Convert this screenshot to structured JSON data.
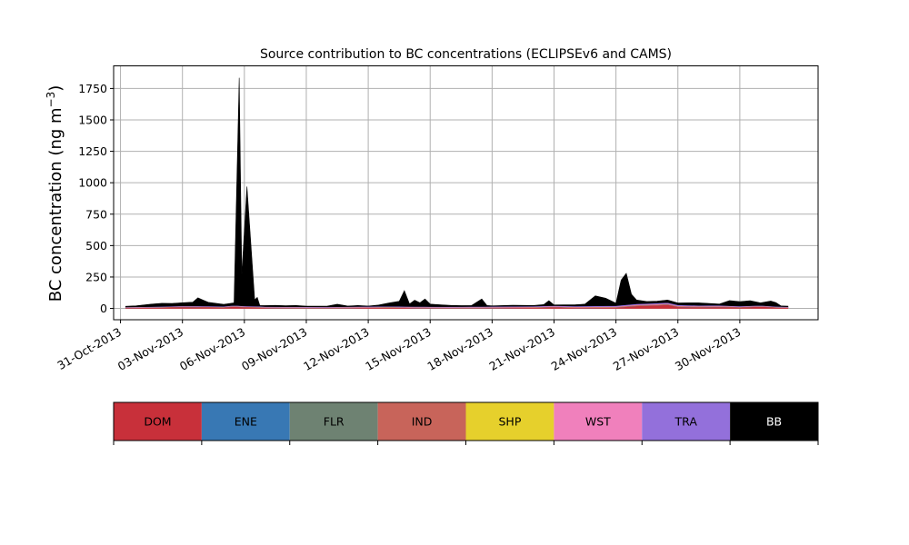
{
  "chart_data": {
    "type": "area",
    "stacked": true,
    "title": "Source contribution to BC concentrations (ECLIPSEv6 and CAMS)",
    "ylabel_main": "BC concentration (ng m",
    "ylabel_sup": "−3",
    "ylabel_close": ")",
    "xlabel": "",
    "grid": true,
    "ylim": [
      -90,
      1930
    ],
    "xlim": [
      "2013-10-30T16:00",
      "2013-12-03T19:00"
    ],
    "yticks": [
      0,
      250,
      500,
      750,
      1000,
      1250,
      1500,
      1750
    ],
    "ytick_labels": [
      "0",
      "250",
      "500",
      "750",
      "1000",
      "1250",
      "1500",
      "1750"
    ],
    "xticks": [
      "2013-10-31",
      "2013-11-03",
      "2013-11-06",
      "2013-11-09",
      "2013-11-12",
      "2013-11-15",
      "2013-11-18",
      "2013-11-21",
      "2013-11-24",
      "2013-11-27",
      "2013-11-30"
    ],
    "xtick_labels": [
      "31-Oct-2013",
      "03-Nov-2013",
      "06-Nov-2013",
      "09-Nov-2013",
      "12-Nov-2013",
      "15-Nov-2013",
      "18-Nov-2013",
      "21-Nov-2013",
      "24-Nov-2013",
      "27-Nov-2013",
      "30-Nov-2013"
    ],
    "legend_position": "below",
    "series": [
      {
        "name": "DOM",
        "color": "#c8303a",
        "points": [
          [
            "2013-10-31T06:00",
            5
          ],
          [
            "2013-11-01T00:00",
            6
          ],
          [
            "2013-11-02T00:00",
            8
          ],
          [
            "2013-11-03T00:00",
            12
          ],
          [
            "2013-11-04T00:00",
            10
          ],
          [
            "2013-11-05T00:00",
            8
          ],
          [
            "2013-11-05T12:00",
            15
          ],
          [
            "2013-11-06T00:00",
            10
          ],
          [
            "2013-11-06T18:00",
            8
          ],
          [
            "2013-11-07T00:00",
            5
          ],
          [
            "2013-11-08T00:00",
            4
          ],
          [
            "2013-11-10T00:00",
            3
          ],
          [
            "2013-11-12T00:00",
            6
          ],
          [
            "2013-11-13T00:00",
            8
          ],
          [
            "2013-11-14T00:00",
            5
          ],
          [
            "2013-11-16T00:00",
            3
          ],
          [
            "2013-11-18T00:00",
            4
          ],
          [
            "2013-11-20T00:00",
            6
          ],
          [
            "2013-11-21T00:00",
            10
          ],
          [
            "2013-11-22T00:00",
            5
          ],
          [
            "2013-11-24T00:00",
            6
          ],
          [
            "2013-11-25T00:00",
            20
          ],
          [
            "2013-11-26T00:00",
            25
          ],
          [
            "2013-11-26T12:00",
            30
          ],
          [
            "2013-11-27T00:00",
            12
          ],
          [
            "2013-11-28T00:00",
            10
          ],
          [
            "2013-11-29T00:00",
            12
          ],
          [
            "2013-11-30T00:00",
            8
          ],
          [
            "2013-12-01T00:00",
            15
          ],
          [
            "2013-12-01T18:00",
            8
          ],
          [
            "2013-12-02T08:00",
            6
          ]
        ]
      },
      {
        "name": "ENE",
        "color": "#3878b4",
        "points": [
          [
            "2013-10-31T06:00",
            1
          ],
          [
            "2013-11-10T00:00",
            1
          ],
          [
            "2013-11-20T00:00",
            1
          ],
          [
            "2013-12-02T08:00",
            1
          ]
        ]
      },
      {
        "name": "FLR",
        "color": "#6e8272",
        "points": [
          [
            "2013-10-31T06:00",
            0
          ],
          [
            "2013-12-02T08:00",
            0
          ]
        ]
      },
      {
        "name": "IND",
        "color": "#c8645a",
        "points": [
          [
            "2013-10-31T06:00",
            2
          ],
          [
            "2013-11-05T00:00",
            3
          ],
          [
            "2013-11-13T00:00",
            3
          ],
          [
            "2013-11-21T00:00",
            4
          ],
          [
            "2013-11-26T00:00",
            6
          ],
          [
            "2013-12-02T08:00",
            2
          ]
        ]
      },
      {
        "name": "SHP",
        "color": "#e6d02c",
        "points": [
          [
            "2013-10-31T06:00",
            0
          ],
          [
            "2013-12-02T08:00",
            0
          ]
        ]
      },
      {
        "name": "WST",
        "color": "#f080bc",
        "points": [
          [
            "2013-10-31T06:00",
            1
          ],
          [
            "2013-11-26T00:00",
            3
          ],
          [
            "2013-12-02T08:00",
            1
          ]
        ]
      },
      {
        "name": "TRA",
        "color": "#9370db",
        "points": [
          [
            "2013-10-31T06:00",
            3
          ],
          [
            "2013-11-05T00:00",
            4
          ],
          [
            "2013-11-13T00:00",
            4
          ],
          [
            "2013-11-21T00:00",
            5
          ],
          [
            "2013-11-26T00:00",
            8
          ],
          [
            "2013-12-02T08:00",
            3
          ]
        ]
      },
      {
        "name": "BB",
        "color": "#000000",
        "points": [
          [
            "2013-10-31T06:00",
            5
          ],
          [
            "2013-10-31T18:00",
            8
          ],
          [
            "2013-11-01T12:00",
            20
          ],
          [
            "2013-11-02T00:00",
            25
          ],
          [
            "2013-11-02T12:00",
            22
          ],
          [
            "2013-11-03T00:00",
            25
          ],
          [
            "2013-11-03T12:00",
            30
          ],
          [
            "2013-11-03T18:00",
            65
          ],
          [
            "2013-11-04T06:00",
            30
          ],
          [
            "2013-11-05T00:00",
            15
          ],
          [
            "2013-11-05T12:00",
            20
          ],
          [
            "2013-11-05T18:00",
            1813
          ],
          [
            "2013-11-05T21:00",
            250
          ],
          [
            "2013-11-06T03:00",
            950
          ],
          [
            "2013-11-06T12:00",
            50
          ],
          [
            "2013-11-06T15:00",
            70
          ],
          [
            "2013-11-06T18:00",
            5
          ],
          [
            "2013-11-07T00:00",
            8
          ],
          [
            "2013-11-07T12:00",
            10
          ],
          [
            "2013-11-08T00:00",
            8
          ],
          [
            "2013-11-08T12:00",
            10
          ],
          [
            "2013-11-09T00:00",
            5
          ],
          [
            "2013-11-10T00:00",
            5
          ],
          [
            "2013-11-10T12:00",
            20
          ],
          [
            "2013-11-11T00:00",
            5
          ],
          [
            "2013-11-11T12:00",
            8
          ],
          [
            "2013-11-12T00:00",
            3
          ],
          [
            "2013-11-12T12:00",
            10
          ],
          [
            "2013-11-13T00:00",
            25
          ],
          [
            "2013-11-13T12:00",
            40
          ],
          [
            "2013-11-13T18:00",
            125
          ],
          [
            "2013-11-14T00:00",
            20
          ],
          [
            "2013-11-14T06:00",
            50
          ],
          [
            "2013-11-14T12:00",
            30
          ],
          [
            "2013-11-14T18:00",
            60
          ],
          [
            "2013-11-15T00:00",
            20
          ],
          [
            "2013-11-15T12:00",
            15
          ],
          [
            "2013-11-16T00:00",
            10
          ],
          [
            "2013-11-16T12:00",
            8
          ],
          [
            "2013-11-17T00:00",
            8
          ],
          [
            "2013-11-17T12:00",
            60
          ],
          [
            "2013-11-17T18:00",
            8
          ],
          [
            "2013-11-18T00:00",
            5
          ],
          [
            "2013-11-19T00:00",
            8
          ],
          [
            "2013-11-20T00:00",
            5
          ],
          [
            "2013-11-20T12:00",
            10
          ],
          [
            "2013-11-20T18:00",
            40
          ],
          [
            "2013-11-21T00:00",
            5
          ],
          [
            "2013-11-21T12:00",
            8
          ],
          [
            "2013-11-22T00:00",
            10
          ],
          [
            "2013-11-22T12:00",
            15
          ],
          [
            "2013-11-23T00:00",
            80
          ],
          [
            "2013-11-23T12:00",
            60
          ],
          [
            "2013-11-24T00:00",
            20
          ],
          [
            "2013-11-24T06:00",
            200
          ],
          [
            "2013-11-24T12:00",
            250
          ],
          [
            "2013-11-24T18:00",
            80
          ],
          [
            "2013-11-25T00:00",
            30
          ],
          [
            "2013-11-25T12:00",
            15
          ],
          [
            "2013-11-26T00:00",
            15
          ],
          [
            "2013-11-26T12:00",
            20
          ],
          [
            "2013-11-27T00:00",
            15
          ],
          [
            "2013-11-27T12:00",
            18
          ],
          [
            "2013-11-28T00:00",
            20
          ],
          [
            "2013-11-28T12:00",
            15
          ],
          [
            "2013-11-29T00:00",
            10
          ],
          [
            "2013-11-29T12:00",
            40
          ],
          [
            "2013-11-30T00:00",
            35
          ],
          [
            "2013-11-30T12:00",
            40
          ],
          [
            "2013-12-01T00:00",
            20
          ],
          [
            "2013-12-01T12:00",
            40
          ],
          [
            "2013-12-01T18:00",
            30
          ],
          [
            "2013-12-02T00:00",
            5
          ],
          [
            "2013-12-02T08:00",
            5
          ]
        ]
      }
    ]
  }
}
